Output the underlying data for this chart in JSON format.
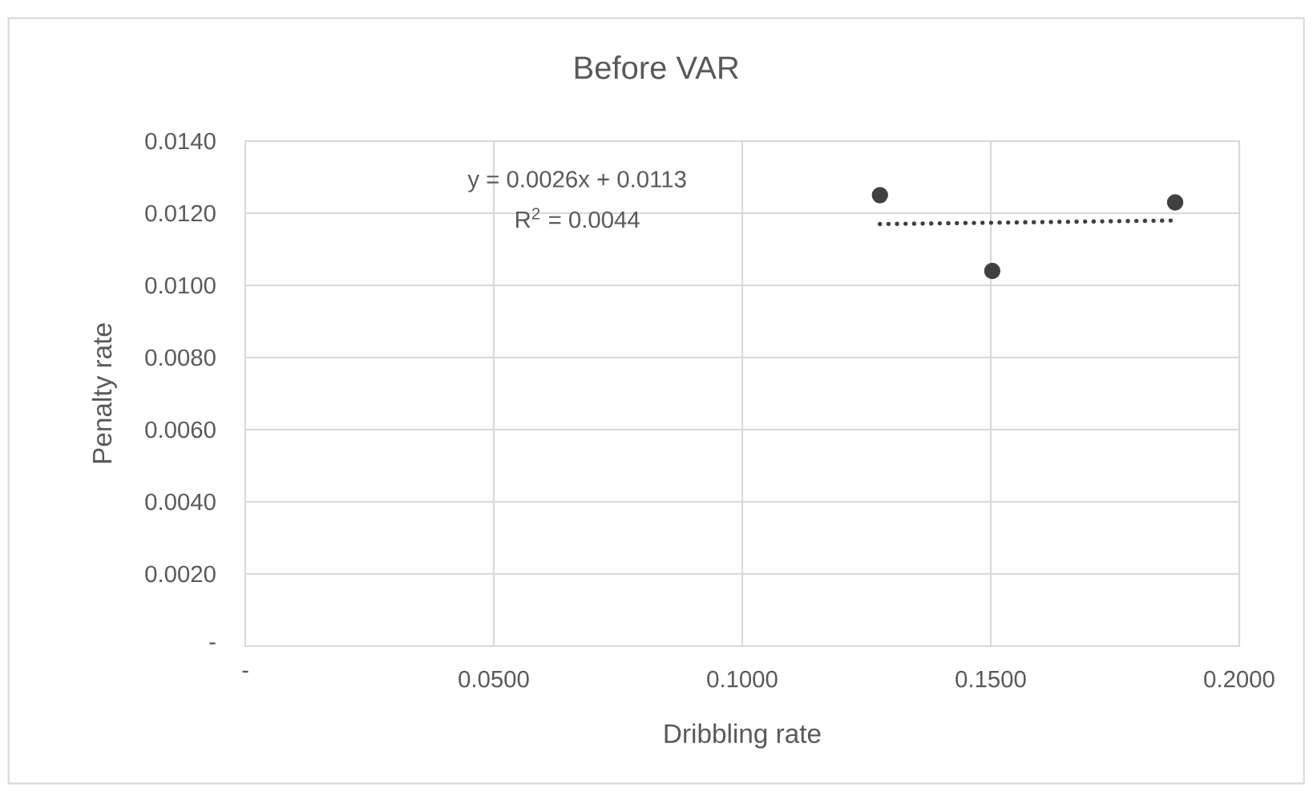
{
  "chart_data": {
    "type": "scatter",
    "title": "Before VAR",
    "xlabel": "Dribbling rate",
    "ylabel": "Penalty rate",
    "xlim": [
      0,
      0.2
    ],
    "ylim": [
      0,
      0.014
    ],
    "xticks": [
      {
        "value": 0,
        "label": "-"
      },
      {
        "value": 0.05,
        "label": "0.0500"
      },
      {
        "value": 0.1,
        "label": "0.1000"
      },
      {
        "value": 0.15,
        "label": "0.1500"
      },
      {
        "value": 0.2,
        "label": "0.2000"
      }
    ],
    "yticks": [
      {
        "value": 0,
        "label": "-"
      },
      {
        "value": 0.002,
        "label": "0.0020"
      },
      {
        "value": 0.004,
        "label": "0.0040"
      },
      {
        "value": 0.006,
        "label": "0.0060"
      },
      {
        "value": 0.008,
        "label": "0.0080"
      },
      {
        "value": 0.01,
        "label": "0.0100"
      },
      {
        "value": 0.012,
        "label": "0.0120"
      },
      {
        "value": 0.014,
        "label": "0.0140"
      }
    ],
    "grid": true,
    "series": [
      {
        "color": "#404040",
        "marker": "circle",
        "x": [
          0.1277,
          0.1503,
          0.1871
        ],
        "values": [
          0.0125,
          0.0104,
          0.0123
        ]
      },
      {
        "type": "line",
        "color": "#404040",
        "marker": "none",
        "line_style": "dotted",
        "x": [
          0.1277,
          0.1871
        ],
        "values": [
          0.0117,
          0.0118
        ]
      }
    ],
    "annotations": [
      "y = 0.0026x + 0.0113",
      "R$^{2}$ = 0.0044"
    ]
  }
}
